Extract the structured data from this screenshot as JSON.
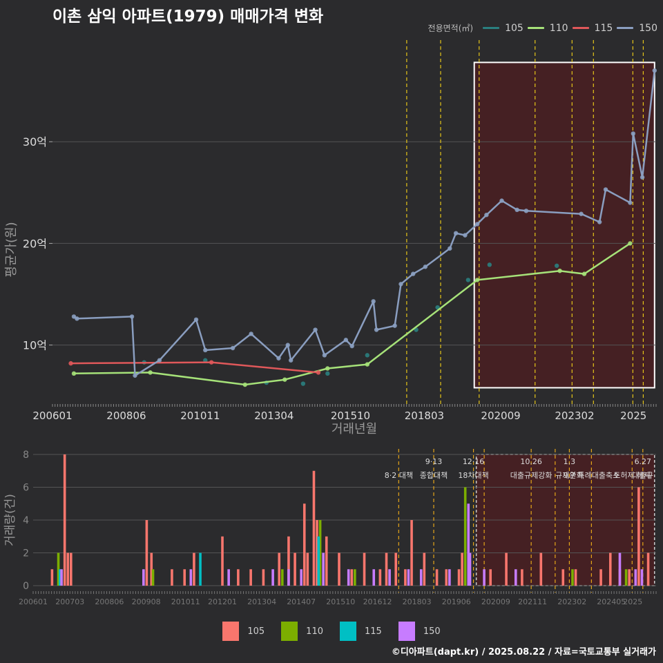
{
  "title": "이촌 삼익 아파트(1979) 매매가격 변화",
  "legend_title": "전용면적(㎡)",
  "credit": "©디아파트(dapt.kr) / 2025.08.22 / 자료=국토교통부 실거래가",
  "colors": {
    "background": "#2b2b2d",
    "line_105": "#2a7f7f",
    "line_110": "#a6e279",
    "line_115": "#e0585a",
    "line_150": "#8a9ec0",
    "bar_105": "#f8766d",
    "bar_110": "#7cae00",
    "bar_115": "#00bfc4",
    "bar_150": "#c77cff",
    "policy_line": "#e6c619",
    "policy_line_bottom": "#e6a619",
    "highlight_fill": "#4a1e22",
    "grid": "#555555"
  },
  "chart_data": [
    {
      "type": "line",
      "title": "이촌 삼익 아파트(1979) 매매가격 변화",
      "xlabel": "거래년월",
      "ylabel": "평균가(원)",
      "x_ticks": [
        "200601",
        "200806",
        "201011",
        "201304",
        "201510",
        "201803",
        "202009",
        "202302",
        "2025"
      ],
      "y_ticks": [
        {
          "value": 10,
          "label": "10억"
        },
        {
          "value": 20,
          "label": "20억"
        },
        {
          "value": 30,
          "label": "30억"
        }
      ],
      "xlim": [
        2006.0,
        2025.75
      ],
      "ylim": [
        4.2,
        40
      ],
      "highlight_region": {
        "x": [
          2019.8,
          2025.7
        ],
        "y": [
          5.8,
          37.8
        ]
      },
      "policy_dates": [
        2017.59,
        2018.7,
        2019.96,
        2021.79,
        2023.0,
        2023.7,
        2024.99,
        2025.33
      ],
      "series": [
        {
          "name": "105",
          "x": [
            2009.0,
            2011.0,
            2013.0,
            2014.2,
            2015.0,
            2016.3,
            2017.9,
            2018.6,
            2019.6,
            2020.3,
            2022.5
          ],
          "values": [
            8.3,
            8.5,
            6.3,
            6.2,
            7.2,
            9.0,
            11.5,
            13.7,
            16.4,
            17.9,
            17.8
          ]
        },
        {
          "name": "110",
          "x": [
            2006.7,
            2009.2,
            2012.3,
            2013.6,
            2015.0,
            2016.3,
            2019.9,
            2022.6,
            2023.4,
            2024.9
          ],
          "values": [
            7.2,
            7.3,
            6.1,
            6.6,
            7.7,
            8.1,
            16.4,
            17.3,
            17.0,
            20.0
          ]
        },
        {
          "name": "115",
          "x": [
            2006.6,
            2011.2,
            2014.7
          ],
          "values": [
            8.2,
            8.3,
            7.3
          ]
        },
        {
          "name": "150",
          "x": [
            2006.7,
            2006.8,
            2008.6,
            2008.7,
            2009.5,
            2010.7,
            2011.0,
            2011.9,
            2012.5,
            2013.4,
            2013.7,
            2013.8,
            2014.6,
            2014.9,
            2015.6,
            2015.8,
            2016.5,
            2016.6,
            2017.2,
            2017.4,
            2017.8,
            2018.2,
            2019.0,
            2019.2,
            2019.5,
            2019.9,
            2020.2,
            2020.7,
            2021.2,
            2021.5,
            2023.3,
            2023.9,
            2024.1,
            2024.9,
            2025.0,
            2025.3,
            2025.7
          ],
          "values": [
            12.8,
            12.6,
            12.8,
            7.0,
            8.5,
            12.5,
            9.5,
            9.7,
            11.1,
            8.7,
            10.0,
            8.5,
            11.5,
            9.0,
            10.5,
            9.9,
            14.3,
            11.5,
            11.9,
            16.0,
            17.0,
            17.7,
            19.5,
            21.0,
            20.8,
            21.9,
            22.8,
            24.2,
            23.3,
            23.2,
            22.9,
            22.1,
            25.3,
            24.0,
            30.8,
            26.5,
            37.0
          ]
        }
      ]
    },
    {
      "type": "bar",
      "ylabel": "거래량(건)",
      "x_ticks": [
        "200601",
        "200703",
        "200806",
        "200908",
        "201011",
        "201201",
        "201304",
        "201407",
        "201510",
        "201612",
        "201803",
        "201906",
        "202009",
        "202111",
        "202302",
        "202405",
        "2025"
      ],
      "y_ticks": [
        0,
        2,
        4,
        6,
        8
      ],
      "ylim": [
        0,
        8
      ],
      "xlim": [
        2006.0,
        2025.75
      ],
      "policy_dates": [
        2017.59,
        2018.7,
        2019.96,
        2020.3,
        2021.79,
        2022.55,
        2023.0,
        2023.7,
        2024.99,
        2025.33
      ],
      "policy_labels": [
        {
          "date": 2017.59,
          "line1": "",
          "line2": "8·2 대책"
        },
        {
          "date": 2018.7,
          "line1": "9·13",
          "line2": "종합대책"
        },
        {
          "date": 2019.96,
          "line1": "12·16",
          "line2": "18차대책"
        },
        {
          "date": 2021.79,
          "line1": "10.26",
          "line2": "대출규제강화"
        },
        {
          "date": 2023.0,
          "line1": "1.3",
          "line2": "규제완화"
        },
        {
          "date": 2023.7,
          "line1": "",
          "line2": "9.7 특례대출축소"
        },
        {
          "date": 2024.99,
          "line1": "",
          "line2": "토허제 해제"
        },
        {
          "date": 2025.33,
          "line1": "6.27",
          "line2": "대출규"
        }
      ],
      "highlight_region": {
        "x": [
          2020.05,
          2025.7
        ],
        "y": [
          0,
          8
        ]
      },
      "series": [
        {
          "name": "105",
          "x": [
            2006.6,
            2007.0,
            2007.1,
            2007.2,
            2009.6,
            2009.75,
            2010.4,
            2010.8,
            2011.1,
            2012.0,
            2012.5,
            2012.9,
            2013.3,
            2013.8,
            2014.1,
            2014.3,
            2014.6,
            2014.7,
            2014.9,
            2015.0,
            2015.3,
            2015.7,
            2016.1,
            2016.5,
            2017.0,
            2017.2,
            2017.5,
            2017.8,
            2018.0,
            2018.4,
            2018.8,
            2019.1,
            2019.5,
            2019.6,
            2020.5,
            2021.0,
            2021.5,
            2022.1,
            2022.8,
            2023.2,
            2024.0,
            2024.3,
            2024.6,
            2024.9,
            2025.2,
            2025.5
          ],
          "values": [
            1,
            8,
            2,
            2,
            4,
            2,
            1,
            1,
            2,
            3,
            1,
            1,
            1,
            2,
            3,
            2,
            5,
            2,
            7,
            4,
            3,
            2,
            1,
            2,
            1,
            2,
            2,
            1,
            4,
            2,
            1,
            1,
            1,
            2,
            1,
            2,
            1,
            2,
            1,
            1,
            1,
            2,
            1,
            1,
            6,
            2
          ]
        },
        {
          "name": "110",
          "x": [
            2006.8,
            2009.8,
            2013.9,
            2015.1,
            2016.2,
            2019.7,
            2023.1,
            2024.8
          ],
          "values": [
            2,
            1,
            1,
            4,
            1,
            6,
            1,
            1
          ]
        },
        {
          "name": "115",
          "x": [
            2006.85,
            2011.3,
            2015.05
          ],
          "values": [
            1,
            2,
            3
          ]
        },
        {
          "name": "150",
          "x": [
            2006.9,
            2009.5,
            2011.0,
            2012.2,
            2013.6,
            2014.1,
            2014.5,
            2015.2,
            2016.0,
            2016.8,
            2017.3,
            2017.9,
            2018.3,
            2019.2,
            2019.8,
            2019.85,
            2020.3,
            2021.3,
            2024.6,
            2025.1,
            2025.3
          ],
          "values": [
            1,
            1,
            1,
            1,
            1,
            1,
            1,
            2,
            1,
            1,
            1,
            1,
            1,
            1,
            5,
            2,
            1,
            1,
            2,
            1,
            1
          ]
        }
      ]
    }
  ]
}
